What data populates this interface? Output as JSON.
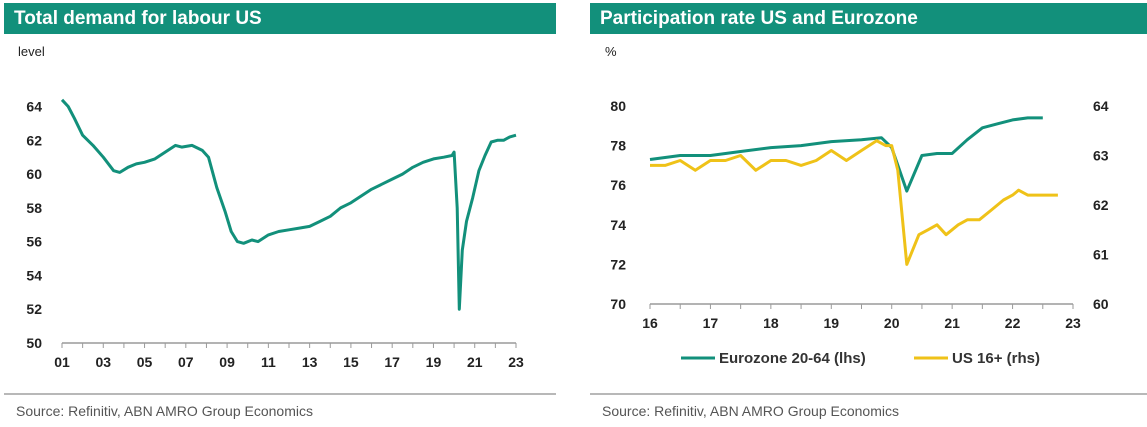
{
  "colors": {
    "teal": "#12907b",
    "yellow": "#efc218",
    "axis": "#9a9a9a"
  },
  "chart_data": [
    {
      "type": "line",
      "title": "Total demand for labour US",
      "ylabel": "level",
      "source": "Source: Refinitiv, ABN AMRO Group Economics",
      "xticks": [
        "01",
        "03",
        "05",
        "07",
        "09",
        "11",
        "13",
        "15",
        "17",
        "19",
        "21",
        "23"
      ],
      "yticks": [
        "50",
        "52",
        "54",
        "56",
        "58",
        "60",
        "62",
        "64"
      ],
      "ylim": [
        50,
        64.8
      ],
      "xlim": [
        2001,
        2023
      ],
      "series": [
        {
          "name": "",
          "x": [
            2001.0,
            2001.3,
            2001.6,
            2002.0,
            2002.5,
            2003.0,
            2003.5,
            2003.8,
            2004.2,
            2004.6,
            2005.0,
            2005.5,
            2006.0,
            2006.5,
            2006.8,
            2007.3,
            2007.8,
            2008.1,
            2008.5,
            2008.9,
            2009.2,
            2009.5,
            2009.8,
            2010.2,
            2010.5,
            2011.0,
            2011.5,
            2012.0,
            2012.5,
            2013.0,
            2013.5,
            2014.0,
            2014.5,
            2015.0,
            2015.5,
            2016.0,
            2016.5,
            2017.0,
            2017.5,
            2018.0,
            2018.5,
            2019.0,
            2019.5,
            2019.9,
            2020.0,
            2020.15,
            2020.25,
            2020.4,
            2020.6,
            2020.9,
            2021.2,
            2021.5,
            2021.8,
            2022.1,
            2022.4,
            2022.7,
            2023.0
          ],
          "y": [
            64.4,
            64.0,
            63.3,
            62.3,
            61.7,
            61.0,
            60.2,
            60.1,
            60.4,
            60.6,
            60.7,
            60.9,
            61.3,
            61.7,
            61.6,
            61.7,
            61.4,
            61.0,
            59.2,
            57.8,
            56.6,
            56.0,
            55.9,
            56.1,
            56.0,
            56.4,
            56.6,
            56.7,
            56.8,
            56.9,
            57.2,
            57.5,
            58.0,
            58.3,
            58.7,
            59.1,
            59.4,
            59.7,
            60.0,
            60.4,
            60.7,
            60.9,
            61.0,
            61.1,
            61.3,
            58.0,
            52.0,
            55.5,
            57.2,
            58.6,
            60.2,
            61.1,
            61.9,
            62.0,
            62.0,
            62.2,
            62.3
          ]
        }
      ]
    },
    {
      "type": "line",
      "title": "Participation rate US and Eurozone",
      "ylabel": "%",
      "source": "Source: Refinitiv, ABN AMRO Group Economics",
      "xticks": [
        "16",
        "17",
        "18",
        "19",
        "20",
        "21",
        "22",
        "23"
      ],
      "yticks_left": [
        "70",
        "72",
        "74",
        "76",
        "78",
        "80"
      ],
      "yticks_right": [
        "60",
        "61",
        "62",
        "63",
        "64"
      ],
      "ylim_left": [
        70,
        80
      ],
      "ylim_right": [
        60,
        64
      ],
      "xlim": [
        2016,
        2023
      ],
      "legend": "bottom",
      "series": [
        {
          "name": "Eurozone 20-64 (lhs)",
          "axis": "left",
          "color": "#12907b",
          "x": [
            2016.0,
            2016.5,
            2017.0,
            2017.5,
            2018.0,
            2018.5,
            2019.0,
            2019.5,
            2019.83,
            2020.0,
            2020.25,
            2020.5,
            2020.75,
            2021.0,
            2021.25,
            2021.5,
            2021.75,
            2022.0,
            2022.25,
            2022.5
          ],
          "y": [
            77.3,
            77.5,
            77.5,
            77.7,
            77.9,
            78.0,
            78.2,
            78.3,
            78.4,
            77.9,
            75.7,
            77.5,
            77.6,
            77.6,
            78.3,
            78.9,
            79.1,
            79.3,
            79.4,
            79.4
          ]
        },
        {
          "name": "US 16+ (rhs)",
          "axis": "right",
          "color": "#efc218",
          "x": [
            2016.0,
            2016.25,
            2016.5,
            2016.75,
            2017.0,
            2017.25,
            2017.5,
            2017.75,
            2018.0,
            2018.25,
            2018.5,
            2018.75,
            2019.0,
            2019.25,
            2019.5,
            2019.75,
            2019.9,
            2020.0,
            2020.1,
            2020.25,
            2020.45,
            2020.6,
            2020.75,
            2020.9,
            2021.1,
            2021.25,
            2021.45,
            2021.65,
            2021.85,
            2022.0,
            2022.1,
            2022.25,
            2022.5,
            2022.75
          ],
          "y": [
            62.8,
            62.8,
            62.9,
            62.7,
            62.9,
            62.9,
            63.0,
            62.7,
            62.9,
            62.9,
            62.8,
            62.9,
            63.1,
            62.9,
            63.1,
            63.3,
            63.2,
            63.2,
            62.7,
            60.8,
            61.4,
            61.5,
            61.6,
            61.4,
            61.6,
            61.7,
            61.7,
            61.9,
            62.1,
            62.2,
            62.3,
            62.2,
            62.2,
            62.2
          ]
        }
      ]
    }
  ]
}
